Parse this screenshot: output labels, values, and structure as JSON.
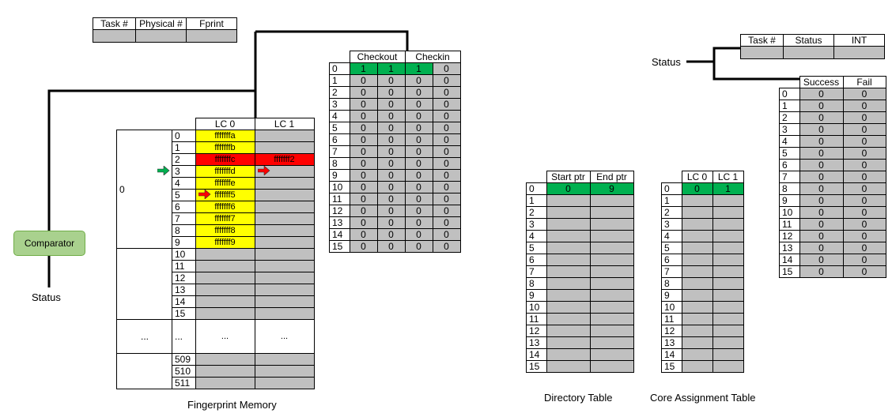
{
  "task_table": {
    "headers": [
      "Task #",
      "Physical #",
      "Fprint"
    ]
  },
  "checkout_table": {
    "headers": [
      "Checkout",
      "Checkin"
    ],
    "rows": [
      {
        "idx": "0",
        "v": [
          "1",
          "1",
          "1",
          "0"
        ]
      },
      {
        "idx": "1",
        "v": [
          "0",
          "0",
          "0",
          "0"
        ]
      },
      {
        "idx": "2",
        "v": [
          "0",
          "0",
          "0",
          "0"
        ]
      },
      {
        "idx": "3",
        "v": [
          "0",
          "0",
          "0",
          "0"
        ]
      },
      {
        "idx": "4",
        "v": [
          "0",
          "0",
          "0",
          "0"
        ]
      },
      {
        "idx": "5",
        "v": [
          "0",
          "0",
          "0",
          "0"
        ]
      },
      {
        "idx": "6",
        "v": [
          "0",
          "0",
          "0",
          "0"
        ]
      },
      {
        "idx": "7",
        "v": [
          "0",
          "0",
          "0",
          "0"
        ]
      },
      {
        "idx": "8",
        "v": [
          "0",
          "0",
          "0",
          "0"
        ]
      },
      {
        "idx": "9",
        "v": [
          "0",
          "0",
          "0",
          "0"
        ]
      },
      {
        "idx": "10",
        "v": [
          "0",
          "0",
          "0",
          "0"
        ]
      },
      {
        "idx": "11",
        "v": [
          "0",
          "0",
          "0",
          "0"
        ]
      },
      {
        "idx": "12",
        "v": [
          "0",
          "0",
          "0",
          "0"
        ]
      },
      {
        "idx": "13",
        "v": [
          "0",
          "0",
          "0",
          "0"
        ]
      },
      {
        "idx": "14",
        "v": [
          "0",
          "0",
          "0",
          "0"
        ]
      },
      {
        "idx": "15",
        "v": [
          "0",
          "0",
          "0",
          "0"
        ]
      }
    ]
  },
  "fingerprint_memory": {
    "headers": [
      "LC 0",
      "LC 1"
    ],
    "group_label": "0",
    "ellipsis": "...",
    "rows": [
      {
        "idx": "0",
        "lc0": "fffffffa",
        "lc1": "",
        "color": "y"
      },
      {
        "idx": "1",
        "lc0": "fffffffb",
        "lc1": "",
        "color": "y"
      },
      {
        "idx": "2",
        "lc0": "fffffffc",
        "lc1": "fffffff2",
        "color": "r"
      },
      {
        "idx": "3",
        "lc0": "fffffffd",
        "lc1": "",
        "color": "y"
      },
      {
        "idx": "4",
        "lc0": "fffffffe",
        "lc1": "",
        "color": "y"
      },
      {
        "idx": "5",
        "lc0": "fffffff5",
        "lc1": "",
        "color": "y"
      },
      {
        "idx": "6",
        "lc0": "fffffff6",
        "lc1": "",
        "color": "y"
      },
      {
        "idx": "7",
        "lc0": "fffffff7",
        "lc1": "",
        "color": "y"
      },
      {
        "idx": "8",
        "lc0": "fffffff8",
        "lc1": "",
        "color": "y"
      },
      {
        "idx": "9",
        "lc0": "fffffff9",
        "lc1": "",
        "color": "y"
      },
      {
        "idx": "10",
        "lc0": "",
        "lc1": "",
        "color": "g"
      },
      {
        "idx": "11",
        "lc0": "",
        "lc1": "",
        "color": "g"
      },
      {
        "idx": "12",
        "lc0": "",
        "lc1": "",
        "color": "g"
      },
      {
        "idx": "13",
        "lc0": "",
        "lc1": "",
        "color": "g"
      },
      {
        "idx": "14",
        "lc0": "",
        "lc1": "",
        "color": "g"
      },
      {
        "idx": "15",
        "lc0": "",
        "lc1": "",
        "color": "g"
      },
      {
        "idx": "...",
        "lc0": "...",
        "lc1": "...",
        "color": "w"
      },
      {
        "idx": "509",
        "lc0": "",
        "lc1": "",
        "color": "g"
      },
      {
        "idx": "510",
        "lc0": "",
        "lc1": "",
        "color": "g"
      },
      {
        "idx": "511",
        "lc0": "",
        "lc1": "",
        "color": "g"
      }
    ],
    "caption": "Fingerprint Memory"
  },
  "comparator": {
    "label": "Comparator",
    "status_label": "Status"
  },
  "directory_table": {
    "headers": [
      "Start ptr",
      "End ptr"
    ],
    "first_row": [
      "0",
      "9"
    ],
    "indices": [
      "0",
      "1",
      "2",
      "3",
      "4",
      "5",
      "6",
      "7",
      "8",
      "9",
      "10",
      "11",
      "12",
      "13",
      "14",
      "15"
    ],
    "caption": "Directory Table"
  },
  "core_assignment_table": {
    "headers": [
      "LC 0",
      "LC 1"
    ],
    "first_row": [
      "0",
      "1"
    ],
    "indices": [
      "0",
      "1",
      "2",
      "3",
      "4",
      "5",
      "6",
      "7",
      "8",
      "9",
      "10",
      "11",
      "12",
      "13",
      "14",
      "15"
    ],
    "caption": "Core Assignment Table"
  },
  "status_table": {
    "status_label": "Status",
    "headers": [
      "Task #",
      "Status",
      "INT"
    ]
  },
  "success_fail_table": {
    "headers": [
      "Success",
      "Fail"
    ],
    "rows": [
      {
        "idx": "0",
        "v": [
          "0",
          "0"
        ]
      },
      {
        "idx": "1",
        "v": [
          "0",
          "0"
        ]
      },
      {
        "idx": "2",
        "v": [
          "0",
          "0"
        ]
      },
      {
        "idx": "3",
        "v": [
          "0",
          "0"
        ]
      },
      {
        "idx": "4",
        "v": [
          "0",
          "0"
        ]
      },
      {
        "idx": "5",
        "v": [
          "0",
          "0"
        ]
      },
      {
        "idx": "6",
        "v": [
          "0",
          "0"
        ]
      },
      {
        "idx": "7",
        "v": [
          "0",
          "0"
        ]
      },
      {
        "idx": "8",
        "v": [
          "0",
          "0"
        ]
      },
      {
        "idx": "9",
        "v": [
          "0",
          "0"
        ]
      },
      {
        "idx": "10",
        "v": [
          "0",
          "0"
        ]
      },
      {
        "idx": "11",
        "v": [
          "0",
          "0"
        ]
      },
      {
        "idx": "12",
        "v": [
          "0",
          "0"
        ]
      },
      {
        "idx": "13",
        "v": [
          "0",
          "0"
        ]
      },
      {
        "idx": "14",
        "v": [
          "0",
          "0"
        ]
      },
      {
        "idx": "15",
        "v": [
          "0",
          "0"
        ]
      }
    ]
  },
  "colors": {
    "highlight_yellow": "#ffff00",
    "highlight_red": "#ff0000",
    "highlight_green": "#00b050",
    "empty_gray": "#c0c0c0",
    "comparator_fill": "#a9d18e"
  },
  "markers": {
    "green_arrow_row": "3",
    "red_arrow_row": "5",
    "red_arrow_lc1_row": "3"
  }
}
